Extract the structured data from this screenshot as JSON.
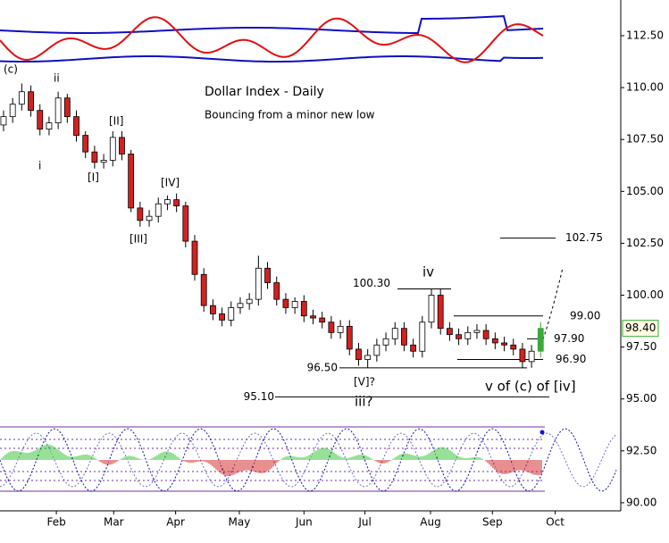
{
  "chart_data": {
    "type": "candlestick",
    "title": "Dollar Index - Daily",
    "subtitle": "Bouncing from a minor new low",
    "x": [
      0,
      1,
      2,
      3,
      4,
      5,
      6,
      7,
      8,
      9,
      10,
      11,
      12,
      13,
      14,
      15,
      16,
      17,
      18,
      19,
      20,
      21,
      22,
      23,
      24,
      25,
      26,
      27,
      28,
      29,
      30,
      31,
      32,
      33,
      34,
      35,
      36,
      37,
      38,
      39,
      40,
      41,
      42,
      43,
      44,
      45,
      46,
      47,
      48,
      49,
      50,
      51,
      52,
      53,
      54,
      55,
      56,
      57,
      58,
      59
    ],
    "open": [
      108.2,
      108.6,
      109.2,
      109.8,
      108.9,
      108.0,
      108.3,
      109.5,
      108.6,
      107.7,
      106.9,
      106.4,
      106.5,
      107.6,
      106.8,
      104.2,
      103.6,
      103.8,
      104.4,
      104.6,
      104.3,
      102.6,
      101.0,
      99.5,
      99.1,
      98.8,
      99.4,
      99.6,
      99.8,
      101.3,
      100.6,
      99.8,
      99.4,
      99.7,
      99.0,
      98.9,
      98.7,
      98.2,
      98.5,
      97.4,
      96.9,
      97.1,
      97.6,
      97.9,
      98.4,
      97.6,
      97.3,
      98.7,
      100.0,
      98.4,
      98.1,
      97.9,
      98.2,
      98.3,
      97.9,
      97.7,
      97.6,
      97.4,
      96.8,
      97.3
    ],
    "high": [
      108.9,
      109.5,
      110.2,
      110.1,
      109.2,
      108.6,
      109.8,
      109.7,
      108.9,
      107.9,
      107.2,
      106.8,
      107.9,
      107.9,
      107.0,
      104.5,
      104.1,
      104.7,
      104.8,
      104.9,
      104.5,
      102.9,
      101.3,
      99.8,
      99.4,
      99.7,
      99.9,
      100.1,
      101.9,
      101.6,
      100.9,
      100.1,
      99.9,
      100.0,
      99.3,
      99.2,
      99.0,
      98.8,
      98.8,
      97.7,
      97.4,
      97.9,
      98.2,
      98.7,
      98.7,
      97.9,
      99.0,
      100.3,
      100.3,
      98.7,
      98.4,
      98.5,
      98.6,
      98.6,
      98.2,
      98.0,
      97.9,
      97.7,
      97.6,
      98.7
    ],
    "low": [
      107.9,
      108.3,
      108.9,
      108.6,
      107.7,
      107.7,
      108.0,
      108.3,
      107.4,
      106.6,
      106.1,
      106.1,
      106.2,
      106.5,
      104.0,
      103.3,
      103.3,
      103.5,
      104.1,
      104.0,
      102.3,
      100.7,
      99.2,
      98.8,
      98.5,
      98.5,
      99.1,
      99.3,
      99.5,
      100.3,
      99.5,
      99.1,
      99.1,
      98.7,
      98.6,
      98.4,
      97.9,
      97.9,
      97.1,
      96.6,
      96.5,
      96.8,
      97.3,
      97.6,
      97.3,
      97.0,
      97.0,
      98.4,
      98.1,
      97.8,
      97.6,
      97.6,
      97.9,
      97.6,
      97.4,
      97.3,
      97.1,
      96.5,
      96.5,
      97.0
    ],
    "close": [
      108.6,
      109.2,
      109.8,
      108.9,
      108.0,
      108.3,
      109.5,
      108.6,
      107.7,
      106.9,
      106.4,
      106.5,
      107.6,
      106.8,
      104.2,
      103.6,
      103.8,
      104.4,
      104.6,
      104.3,
      102.6,
      101.0,
      99.5,
      99.1,
      98.8,
      99.4,
      99.6,
      99.8,
      101.3,
      100.6,
      99.8,
      99.4,
      99.7,
      99.0,
      98.9,
      98.7,
      98.2,
      98.5,
      97.4,
      96.9,
      97.1,
      97.6,
      97.9,
      98.4,
      97.6,
      97.3,
      98.7,
      100.0,
      98.4,
      98.1,
      97.9,
      98.2,
      98.3,
      97.9,
      97.7,
      97.6,
      97.4,
      96.8,
      97.3,
      98.4
    ],
    "up_color": "#ffffff",
    "down_color": "#d42020",
    "last_color": "#3aa83a",
    "xlim": [
      -0.39,
      67.8
    ],
    "xticks": [
      {
        "value": 5.8,
        "label": "Feb"
      },
      {
        "value": 12.1,
        "label": "Mar"
      },
      {
        "value": 18.9,
        "label": "Apr"
      },
      {
        "value": 25.9,
        "label": "May"
      },
      {
        "value": 33,
        "label": "Jun"
      },
      {
        "value": 39.7,
        "label": "Jul"
      },
      {
        "value": 46.9,
        "label": "Aug"
      },
      {
        "value": 53.7,
        "label": "Sep"
      },
      {
        "value": 60.6,
        "label": "Oct"
      }
    ],
    "ylim": [
      89.61,
      114.22
    ],
    "yticks": [
      {
        "value": 90,
        "label": "90.00"
      },
      {
        "value": 92.5,
        "label": "92.50"
      },
      {
        "value": 95,
        "label": "95.00"
      },
      {
        "value": 97.5,
        "label": "97.50"
      },
      {
        "value": 100,
        "label": "100.00"
      },
      {
        "value": 102.5,
        "label": "102.50"
      },
      {
        "value": 105,
        "label": "105.00"
      },
      {
        "value": 107.5,
        "label": "107.50"
      },
      {
        "value": 110,
        "label": "110.00"
      },
      {
        "value": 112.5,
        "label": "112.50"
      }
    ],
    "last_price": {
      "value": 98.4,
      "label": "98.40"
    },
    "levels": [
      {
        "value": 102.75,
        "label": "102.75"
      },
      {
        "value": 100.3,
        "label": "100.30"
      },
      {
        "value": 99,
        "label": "99.00"
      },
      {
        "value": 97.9,
        "label": "97.90"
      },
      {
        "value": 96.9,
        "label": "96.90"
      },
      {
        "value": 96.5,
        "label": "96.50"
      },
      {
        "value": 95.1,
        "label": "95.10"
      }
    ],
    "annotations": [
      "(c)",
      "ii",
      "i",
      "[II]",
      "[I]",
      "[IV]",
      "[III]",
      "iv",
      "[V]?",
      "iii?",
      "v of (c) of [iv]"
    ]
  }
}
